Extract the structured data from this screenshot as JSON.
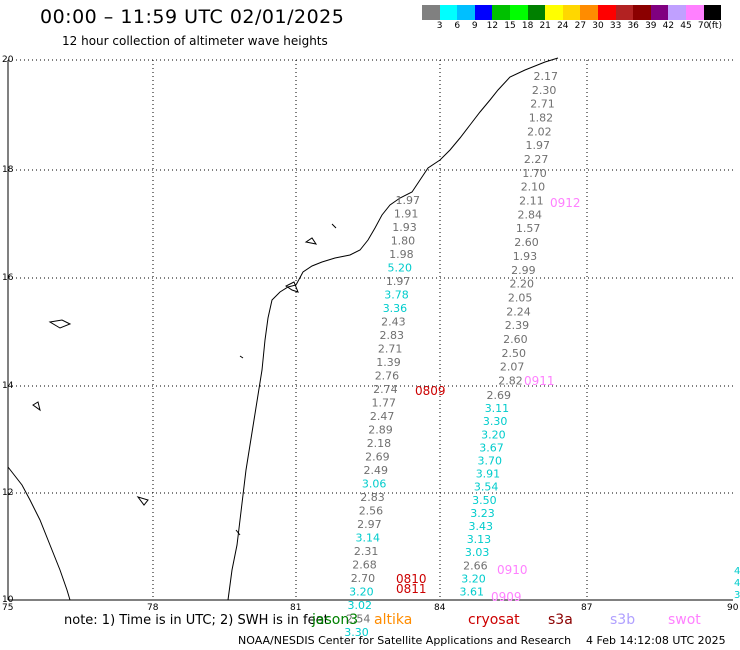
{
  "header": {
    "title": "00:00 – 11:59 UTC 02/01/2025",
    "subtitle": "12 hour collection of altimeter wave heights"
  },
  "colorbar": {
    "colors": [
      "#808080",
      "#00ffff",
      "#00bfff",
      "#0000ff",
      "#00c000",
      "#00ff00",
      "#008000",
      "#ffff00",
      "#ffd700",
      "#ff8c00",
      "#ff0000",
      "#b22222",
      "#8b0000",
      "#800080",
      "#c0a0ff",
      "#ff80ff",
      "#000000"
    ],
    "labels": [
      "3",
      "6",
      "9",
      "12",
      "15",
      "18",
      "21",
      "24",
      "27",
      "30",
      "33",
      "36",
      "39",
      "42",
      "45",
      "70",
      "(ft)"
    ]
  },
  "axes": {
    "lat_labels": [
      "20",
      "18",
      "16",
      "14",
      "12",
      "10"
    ],
    "lon_labels": [
      "75",
      "78",
      "81",
      "84",
      "87",
      "90"
    ]
  },
  "tracks": {
    "right_upper": {
      "color": "#707070",
      "values": [
        "2.17",
        "2.30",
        "2.71",
        "1.82",
        "2.02",
        "1.97",
        "2.27",
        "1.70",
        "2.10",
        "2.11",
        "2.84",
        "1.57",
        "2.60",
        "1.93",
        "2.99",
        "2.20",
        "2.05",
        "2.24",
        "2.39",
        "2.60",
        "2.50",
        "2.07",
        "2.82"
      ],
      "time": "0912",
      "time2": "0911",
      "time_color": "#ff80ff"
    },
    "left": {
      "items": [
        {
          "v": "1.97",
          "c": "#707070"
        },
        {
          "v": "1.91",
          "c": "#707070"
        },
        {
          "v": "1.93",
          "c": "#707070"
        },
        {
          "v": "1.80",
          "c": "#707070"
        },
        {
          "v": "1.98",
          "c": "#707070"
        },
        {
          "v": "5.20",
          "c": "#00cccc"
        },
        {
          "v": "1.97",
          "c": "#707070"
        },
        {
          "v": "3.78",
          "c": "#00cccc"
        },
        {
          "v": "3.36",
          "c": "#00cccc"
        },
        {
          "v": "2.43",
          "c": "#707070"
        },
        {
          "v": "2.83",
          "c": "#707070"
        },
        {
          "v": "2.71",
          "c": "#707070"
        },
        {
          "v": "1.39",
          "c": "#707070"
        },
        {
          "v": "2.76",
          "c": "#707070"
        },
        {
          "v": "2.74",
          "c": "#707070"
        },
        {
          "v": "1.77",
          "c": "#707070"
        },
        {
          "v": "2.47",
          "c": "#707070"
        },
        {
          "v": "2.89",
          "c": "#707070"
        },
        {
          "v": "2.18",
          "c": "#707070"
        },
        {
          "v": "2.69",
          "c": "#707070"
        },
        {
          "v": "2.49",
          "c": "#707070"
        },
        {
          "v": "3.06",
          "c": "#00cccc"
        },
        {
          "v": "2.83",
          "c": "#707070"
        },
        {
          "v": "2.56",
          "c": "#707070"
        },
        {
          "v": "2.97",
          "c": "#707070"
        },
        {
          "v": "3.14",
          "c": "#00cccc"
        },
        {
          "v": "2.31",
          "c": "#707070"
        },
        {
          "v": "2.68",
          "c": "#707070"
        },
        {
          "v": "2.70",
          "c": "#707070"
        },
        {
          "v": "3.20",
          "c": "#00cccc"
        },
        {
          "v": "3.02",
          "c": "#00cccc"
        },
        {
          "v": "2.54",
          "c": "#707070"
        },
        {
          "v": "3.30",
          "c": "#00cccc"
        }
      ],
      "time_a": "0809",
      "time_b": "0810",
      "time_c": "0811",
      "time_color": "#cc0000"
    },
    "right_lower": {
      "items": [
        {
          "v": "2.69",
          "c": "#707070"
        },
        {
          "v": "3.11",
          "c": "#00cccc"
        },
        {
          "v": "3.30",
          "c": "#00cccc"
        },
        {
          "v": "3.20",
          "c": "#00cccc"
        },
        {
          "v": "3.67",
          "c": "#00cccc"
        },
        {
          "v": "3.70",
          "c": "#00cccc"
        },
        {
          "v": "3.91",
          "c": "#00cccc"
        },
        {
          "v": "3.54",
          "c": "#00cccc"
        },
        {
          "v": "3.50",
          "c": "#00cccc"
        },
        {
          "v": "3.23",
          "c": "#00cccc"
        },
        {
          "v": "3.43",
          "c": "#00cccc"
        },
        {
          "v": "3.13",
          "c": "#00cccc"
        },
        {
          "v": "3.03",
          "c": "#00cccc"
        },
        {
          "v": "2.66",
          "c": "#707070"
        },
        {
          "v": "3.20",
          "c": "#00cccc"
        },
        {
          "v": "3.61",
          "c": "#00cccc"
        }
      ],
      "time_a": "0910",
      "time_b": "0909",
      "time_color": "#ff80ff"
    },
    "edge_values": [
      "4",
      "4",
      "3"
    ]
  },
  "footer": {
    "note": "note: 1) Time is in UTC; 2) SWH is in feet",
    "satellites": [
      {
        "name": "jason3",
        "color": "#008000"
      },
      {
        "name": "altika",
        "color": "#ff8c00"
      },
      {
        "name": "cryosat",
        "color": "#cc0000"
      },
      {
        "name": "s3a",
        "color": "#8b0000"
      },
      {
        "name": "s3b",
        "color": "#b0a0ff"
      },
      {
        "name": "swot",
        "color": "#ff80ff"
      }
    ],
    "credit": "NOAA/NESDIS Center for Satellite Applications and Research",
    "timestamp": "4 Feb 14:12:08 UTC 2025"
  }
}
